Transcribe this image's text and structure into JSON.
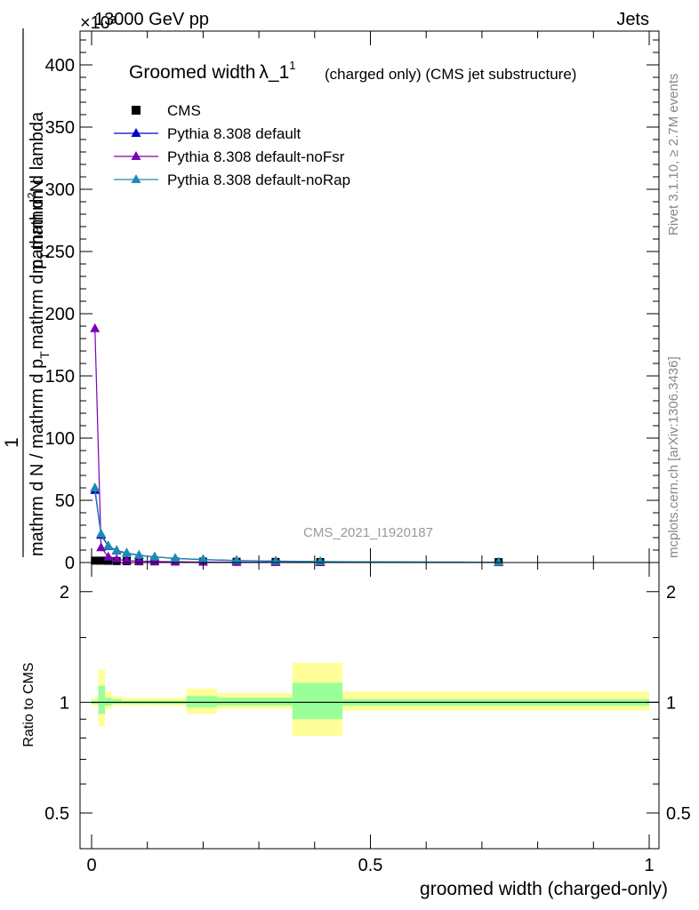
{
  "header": {
    "left": "13000 GeV pp",
    "right": "Jets",
    "exponent": "×10³"
  },
  "side_labels": {
    "rivet": "Rivet 3.1.10, ≥ 2.7M events",
    "mcplots": "mcplots.cern.ch [arXiv:1306.3436]"
  },
  "chart_data": [
    {
      "type": "line",
      "title": "Groomed width",
      "title_symbol": "λ_1",
      "title_superscript": "1",
      "title_note": "(charged only) (CMS jet substructure)",
      "watermark": "CMS_2021_I1920187",
      "ylabel_numerator": "1",
      "ylabel_denominator": "mathrm d N / mathrm d p_T mathrm d p_T mathrm d lambda",
      "ylabel_parts": [
        "mathrm d N / mathrm d p",
        "T",
        "mathrm d p",
        "T",
        "mathrm d lambda"
      ],
      "ylabel_numerator_full": "mathrm d",
      "ylabel_numerator_sup": "2",
      "ylabel_numerator_end": "N",
      "ylim": [
        0,
        430
      ],
      "y_ticks": [
        "0",
        "50",
        "100",
        "150",
        "200",
        "250",
        "300",
        "350",
        "400"
      ],
      "xlim": [
        0,
        1
      ],
      "legend": [
        {
          "name": "CMS",
          "color": "#000000",
          "marker": "square"
        },
        {
          "name": "Pythia 8.308 default",
          "color": "#0000cc",
          "marker": "triangle"
        },
        {
          "name": "Pythia 8.308 default-noFsr",
          "color": "#7a00b4",
          "marker": "triangle"
        },
        {
          "name": "Pythia 8.308 default-noRap",
          "color": "#1a8cb4",
          "marker": "triangle"
        }
      ],
      "series": [
        {
          "name": "CMS",
          "x": [
            0.006,
            0.017,
            0.03,
            0.045,
            0.063,
            0.085,
            0.113,
            0.15,
            0.2,
            0.26,
            0.33,
            0.41,
            0.73
          ],
          "y": [
            1.5,
            1.5,
            1.4,
            1.2,
            1.1,
            1.0,
            0.9,
            0.8,
            0.7,
            0.6,
            0.5,
            0.4,
            0.3
          ]
        },
        {
          "name": "Pythia 8.308 default",
          "x": [
            0.006,
            0.017,
            0.03,
            0.045,
            0.063,
            0.085,
            0.113,
            0.15,
            0.2,
            0.26,
            0.33,
            0.41,
            0.73
          ],
          "y": [
            58,
            22,
            13,
            9.5,
            7.5,
            5.8,
            4.5,
            3.3,
            2.3,
            1.6,
            1.1,
            0.7,
            0.2
          ]
        },
        {
          "name": "Pythia 8.308 default-noFsr",
          "x": [
            0.006,
            0.017,
            0.03,
            0.045,
            0.063,
            0.085,
            0.113,
            0.15,
            0.2,
            0.26,
            0.33,
            0.41,
            0.73
          ],
          "y": [
            188,
            12,
            4.5,
            2.5,
            1.6,
            1.1,
            0.8,
            0.6,
            0.4,
            0.3,
            0.2,
            0.1,
            0.05
          ]
        },
        {
          "name": "Pythia 8.308 default-noRap",
          "x": [
            0.006,
            0.017,
            0.03,
            0.045,
            0.063,
            0.085,
            0.113,
            0.15,
            0.2,
            0.26,
            0.33,
            0.41,
            0.73
          ],
          "y": [
            60,
            23,
            13.5,
            9.8,
            7.8,
            6.0,
            4.6,
            3.4,
            2.4,
            1.7,
            1.2,
            0.8,
            0.2
          ]
        }
      ]
    },
    {
      "type": "area",
      "ylabel": "Ratio to CMS",
      "xlabel": "groomed width (charged-only)",
      "ylim": [
        0.4,
        2.4
      ],
      "log_scale": true,
      "y_ticks": [
        {
          "v": 0.5,
          "label": "0.5"
        },
        {
          "v": 1,
          "label": "1"
        },
        {
          "v": 2,
          "label": "2"
        }
      ],
      "x_ticks": [
        {
          "v": 0,
          "label": "0"
        },
        {
          "v": 0.5,
          "label": "0.5"
        },
        {
          "v": 1,
          "label": "1"
        }
      ],
      "band_colors": {
        "total": "#ffff99",
        "stat": "#99ff99"
      },
      "bins": [
        {
          "x0": 0.0,
          "x1": 0.012,
          "tot_lo": 0.98,
          "tot_hi": 1.03,
          "st_lo": 0.99,
          "st_hi": 1.01
        },
        {
          "x0": 0.012,
          "x1": 0.024,
          "tot_lo": 0.86,
          "tot_hi": 1.23,
          "st_lo": 0.93,
          "st_hi": 1.11
        },
        {
          "x0": 0.024,
          "x1": 0.036,
          "tot_lo": 0.96,
          "tot_hi": 1.07,
          "st_lo": 0.98,
          "st_hi": 1.03
        },
        {
          "x0": 0.036,
          "x1": 0.054,
          "tot_lo": 0.98,
          "tot_hi": 1.04,
          "st_lo": 0.99,
          "st_hi": 1.02
        },
        {
          "x0": 0.054,
          "x1": 0.1,
          "tot_lo": 0.98,
          "tot_hi": 1.03,
          "st_lo": 0.99,
          "st_hi": 1.01
        },
        {
          "x0": 0.1,
          "x1": 0.17,
          "tot_lo": 0.98,
          "tot_hi": 1.03,
          "st_lo": 0.99,
          "st_hi": 1.01
        },
        {
          "x0": 0.17,
          "x1": 0.225,
          "tot_lo": 0.93,
          "tot_hi": 1.09,
          "st_lo": 0.97,
          "st_hi": 1.04
        },
        {
          "x0": 0.225,
          "x1": 0.36,
          "tot_lo": 0.96,
          "tot_hi": 1.06,
          "st_lo": 0.98,
          "st_hi": 1.03
        },
        {
          "x0": 0.36,
          "x1": 0.45,
          "tot_lo": 0.81,
          "tot_hi": 1.28,
          "st_lo": 0.9,
          "st_hi": 1.13
        },
        {
          "x0": 0.45,
          "x1": 1.0,
          "tot_lo": 0.95,
          "tot_hi": 1.07,
          "st_lo": 0.98,
          "st_hi": 1.02
        }
      ]
    }
  ]
}
